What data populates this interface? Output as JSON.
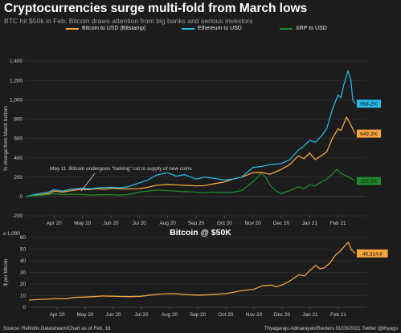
{
  "header": {
    "title": "Cryptocurrencies surge multi-fold from March lows",
    "subtitle": "BTC hit $50k in Feb; Bitcoin draws attention from big banks and serious investors"
  },
  "footer": {
    "source": "Source: Refinitiv Datastream/Chart as of Feb. 16",
    "credit": "Thyagaraju Adinarayan/Reuters 01/03/2021 Twitter @thyagu"
  },
  "colors": {
    "background": "#1c1c1c",
    "grid": "#3a3a3a",
    "bitcoin": "#f7a43a",
    "ethereum": "#29b6e8",
    "xrp": "#1f8a2a"
  },
  "chart_data": [
    {
      "type": "line",
      "title": "",
      "ylabel": "% change from March bottom",
      "xlabel": "",
      "ylim": [
        -200,
        1400
      ],
      "yticks": [
        -200,
        0,
        200,
        400,
        600,
        800,
        1000,
        1200,
        1400
      ],
      "xlim": [
        0,
        12
      ],
      "xticks": [
        {
          "x": 1,
          "label": "Apr 20"
        },
        {
          "x": 2,
          "label": "May 20"
        },
        {
          "x": 3,
          "label": "Jun 20"
        },
        {
          "x": 4,
          "label": "Jul 20"
        },
        {
          "x": 5,
          "label": "Aug 20"
        },
        {
          "x": 6,
          "label": "Sep 20"
        },
        {
          "x": 7,
          "label": "Oct 20"
        },
        {
          "x": 8,
          "label": "Nov 20"
        },
        {
          "x": 9,
          "label": "Dec 20"
        },
        {
          "x": 10,
          "label": "Jan 21"
        },
        {
          "x": 11,
          "label": "Feb 21"
        }
      ],
      "grid": true,
      "legend_position": "top",
      "annotation": {
        "text": "May 11: Bitcoin undergoes \"halving\" cut to supply of new coins",
        "x": 1.95,
        "y": 55
      },
      "series": [
        {
          "name": "Bitcoin to USD (Bitstamp)",
          "color": "#f7a43a",
          "end_label": "649.3%",
          "points": [
            [
              0,
              0
            ],
            [
              0.4,
              15
            ],
            [
              0.8,
              30
            ],
            [
              1,
              55
            ],
            [
              1.3,
              45
            ],
            [
              1.6,
              60
            ],
            [
              1.95,
              75
            ],
            [
              2.2,
              70
            ],
            [
              2.5,
              80
            ],
            [
              2.8,
              75
            ],
            [
              3,
              85
            ],
            [
              3.3,
              80
            ],
            [
              3.6,
              78
            ],
            [
              4,
              82
            ],
            [
              4.3,
              95
            ],
            [
              4.6,
              115
            ],
            [
              5,
              125
            ],
            [
              5.3,
              120
            ],
            [
              5.6,
              115
            ],
            [
              6,
              110
            ],
            [
              6.3,
              112
            ],
            [
              6.6,
              130
            ],
            [
              7,
              150
            ],
            [
              7.3,
              180
            ],
            [
              7.6,
              200
            ],
            [
              8,
              245
            ],
            [
              8.3,
              250
            ],
            [
              8.6,
              230
            ],
            [
              9,
              280
            ],
            [
              9.3,
              330
            ],
            [
              9.6,
              420
            ],
            [
              9.8,
              390
            ],
            [
              10,
              450
            ],
            [
              10.2,
              380
            ],
            [
              10.4,
              420
            ],
            [
              10.6,
              460
            ],
            [
              10.8,
              600
            ],
            [
              11,
              700
            ],
            [
              11.1,
              680
            ],
            [
              11.3,
              820
            ],
            [
              11.45,
              740
            ],
            [
              11.6,
              649.3
            ]
          ]
        },
        {
          "name": "Ethereum to USD",
          "color": "#29b6e8",
          "end_label": "958.2%",
          "points": [
            [
              0,
              0
            ],
            [
              0.4,
              25
            ],
            [
              0.8,
              45
            ],
            [
              1,
              70
            ],
            [
              1.3,
              55
            ],
            [
              1.6,
              75
            ],
            [
              2,
              85
            ],
            [
              2.3,
              80
            ],
            [
              2.6,
              90
            ],
            [
              3,
              95
            ],
            [
              3.3,
              90
            ],
            [
              3.6,
              100
            ],
            [
              4,
              140
            ],
            [
              4.3,
              170
            ],
            [
              4.6,
              220
            ],
            [
              5,
              245
            ],
            [
              5.3,
              210
            ],
            [
              5.6,
              225
            ],
            [
              6,
              180
            ],
            [
              6.3,
              200
            ],
            [
              6.6,
              190
            ],
            [
              7,
              170
            ],
            [
              7.3,
              180
            ],
            [
              7.6,
              200
            ],
            [
              8,
              300
            ],
            [
              8.3,
              310
            ],
            [
              8.6,
              330
            ],
            [
              9,
              340
            ],
            [
              9.3,
              380
            ],
            [
              9.6,
              480
            ],
            [
              9.8,
              520
            ],
            [
              10,
              580
            ],
            [
              10.2,
              560
            ],
            [
              10.4,
              620
            ],
            [
              10.6,
              700
            ],
            [
              10.8,
              900
            ],
            [
              11,
              1050
            ],
            [
              11.1,
              1020
            ],
            [
              11.2,
              1150
            ],
            [
              11.35,
              1300
            ],
            [
              11.45,
              1200
            ],
            [
              11.52,
              1000
            ],
            [
              11.6,
              958.2
            ]
          ]
        },
        {
          "name": "XRP to USD",
          "color": "#1f8a2a",
          "end_label": "159.5%",
          "points": [
            [
              0,
              0
            ],
            [
              0.4,
              10
            ],
            [
              0.8,
              20
            ],
            [
              1,
              30
            ],
            [
              1.3,
              20
            ],
            [
              1.6,
              25
            ],
            [
              2,
              20
            ],
            [
              2.3,
              15
            ],
            [
              2.6,
              18
            ],
            [
              3,
              20
            ],
            [
              3.3,
              15
            ],
            [
              3.6,
              20
            ],
            [
              4,
              45
            ],
            [
              4.3,
              55
            ],
            [
              4.6,
              65
            ],
            [
              5,
              60
            ],
            [
              5.3,
              55
            ],
            [
              5.6,
              50
            ],
            [
              6,
              45
            ],
            [
              6.3,
              40
            ],
            [
              6.6,
              45
            ],
            [
              7,
              40
            ],
            [
              7.3,
              45
            ],
            [
              7.6,
              60
            ],
            [
              8,
              150
            ],
            [
              8.3,
              240
            ],
            [
              8.45,
              200
            ],
            [
              8.6,
              120
            ],
            [
              8.8,
              60
            ],
            [
              9,
              30
            ],
            [
              9.3,
              60
            ],
            [
              9.6,
              100
            ],
            [
              9.8,
              80
            ],
            [
              10,
              120
            ],
            [
              10.2,
              110
            ],
            [
              10.4,
              150
            ],
            [
              10.6,
              180
            ],
            [
              10.8,
              230
            ],
            [
              10.95,
              280
            ],
            [
              11.1,
              240
            ],
            [
              11.3,
              210
            ],
            [
              11.45,
              190
            ],
            [
              11.6,
              159.5
            ]
          ]
        }
      ]
    },
    {
      "type": "line",
      "title": "Bitcoin @ $50K",
      "ylabel": "$ per bitcoin",
      "unit_label": "x 1,000",
      "ylim": [
        0,
        60
      ],
      "yticks": [
        0,
        10,
        20,
        30,
        40,
        50,
        60
      ],
      "xlim": [
        0,
        12
      ],
      "xticks": [
        {
          "x": 1,
          "label": "Apr 20"
        },
        {
          "x": 2,
          "label": "May 20"
        },
        {
          "x": 3,
          "label": "Jun 20"
        },
        {
          "x": 4,
          "label": "Jul 20"
        },
        {
          "x": 5,
          "label": "Aug 20"
        },
        {
          "x": 6,
          "label": "Sep 20"
        },
        {
          "x": 7,
          "label": "Oct 20"
        },
        {
          "x": 8,
          "label": "Nov 20"
        },
        {
          "x": 9,
          "label": "Dec 20"
        },
        {
          "x": 10,
          "label": "Jan 21"
        },
        {
          "x": 11,
          "label": "Feb 21"
        }
      ],
      "grid": true,
      "series": [
        {
          "name": "Bitcoin",
          "color": "#f7a43a",
          "end_label": "46,314.8",
          "points": [
            [
              0,
              6.2
            ],
            [
              0.4,
              6.8
            ],
            [
              0.8,
              7.2
            ],
            [
              1,
              7.5
            ],
            [
              1.3,
              7.3
            ],
            [
              1.6,
              8.5
            ],
            [
              2,
              8.8
            ],
            [
              2.3,
              9.2
            ],
            [
              2.6,
              9.7
            ],
            [
              3,
              9.5
            ],
            [
              3.3,
              9.3
            ],
            [
              3.6,
              9.2
            ],
            [
              4,
              9.5
            ],
            [
              4.3,
              10.5
            ],
            [
              4.6,
              11.3
            ],
            [
              5,
              11.8
            ],
            [
              5.3,
              11.5
            ],
            [
              5.6,
              11.0
            ],
            [
              6,
              10.5
            ],
            [
              6.3,
              10.7
            ],
            [
              6.6,
              11.2
            ],
            [
              7,
              11.8
            ],
            [
              7.3,
              13.0
            ],
            [
              7.6,
              14.5
            ],
            [
              8,
              15.5
            ],
            [
              8.3,
              18.5
            ],
            [
              8.6,
              19.0
            ],
            [
              8.8,
              17.8
            ],
            [
              9,
              19.2
            ],
            [
              9.3,
              23.0
            ],
            [
              9.6,
              28.0
            ],
            [
              9.8,
              27.0
            ],
            [
              10,
              32.0
            ],
            [
              10.2,
              36.0
            ],
            [
              10.35,
              33.0
            ],
            [
              10.5,
              34.0
            ],
            [
              10.7,
              38.0
            ],
            [
              10.9,
              45.0
            ],
            [
              11.05,
              48.0
            ],
            [
              11.2,
              52.0
            ],
            [
              11.35,
              56.0
            ],
            [
              11.45,
              50.0
            ],
            [
              11.6,
              46.3
            ]
          ]
        }
      ]
    }
  ]
}
